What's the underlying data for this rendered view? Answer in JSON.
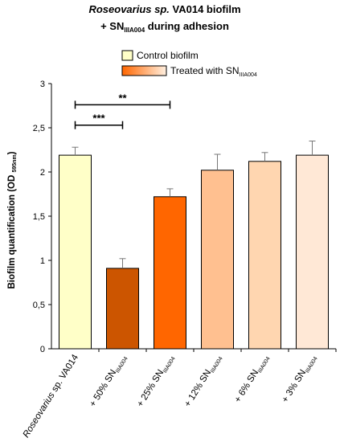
{
  "chart_data": {
    "type": "bar",
    "title_line1": {
      "italic": "Roseovarius sp.",
      "rest": " VA014 biofilm"
    },
    "title_line2": {
      "prefix": "+ SN",
      "sub": "IIIA004",
      "suffix": "  during adhesion"
    },
    "legend": [
      {
        "label": "Control biofilm",
        "sub": "",
        "fill": "#ffffc8"
      },
      {
        "label": "Treated with SN",
        "sub": "IIIA004",
        "gradient": [
          "#ff6600",
          "#fff0e0"
        ]
      }
    ],
    "ylabel": {
      "main": "Biofilm quantification (OD ",
      "sub": "595nm",
      "end": ")"
    },
    "ylim": [
      0,
      3
    ],
    "yticks": [
      "0",
      "0,5",
      "1",
      "1,5",
      "2",
      "2,5",
      "3"
    ],
    "categories": [
      {
        "italic": "Roseovarius",
        "main": " sp. VA014",
        "sub": ""
      },
      {
        "italic": "",
        "main": "+ 50% SN",
        "sub": "IIIA004"
      },
      {
        "italic": "",
        "main": "+ 25% SN",
        "sub": "IIIA004"
      },
      {
        "italic": "",
        "main": "+ 12% SN",
        "sub": "IIIA004"
      },
      {
        "italic": "",
        "main": "+ 6% SN",
        "sub": "IIIA004"
      },
      {
        "italic": "",
        "main": "+ 3% SN",
        "sub": "IIIA004"
      }
    ],
    "values": [
      2.19,
      0.91,
      1.72,
      2.02,
      2.12,
      2.19
    ],
    "errors": [
      0.09,
      0.11,
      0.09,
      0.18,
      0.1,
      0.16
    ],
    "colors": [
      "#ffffc8",
      "#cc5500",
      "#ff6600",
      "#ffc090",
      "#ffd6b0",
      "#ffe8d6"
    ],
    "significance": [
      {
        "from": 0,
        "to": 1,
        "label": "***"
      },
      {
        "from": 0,
        "to": 2,
        "label": "**"
      }
    ]
  }
}
